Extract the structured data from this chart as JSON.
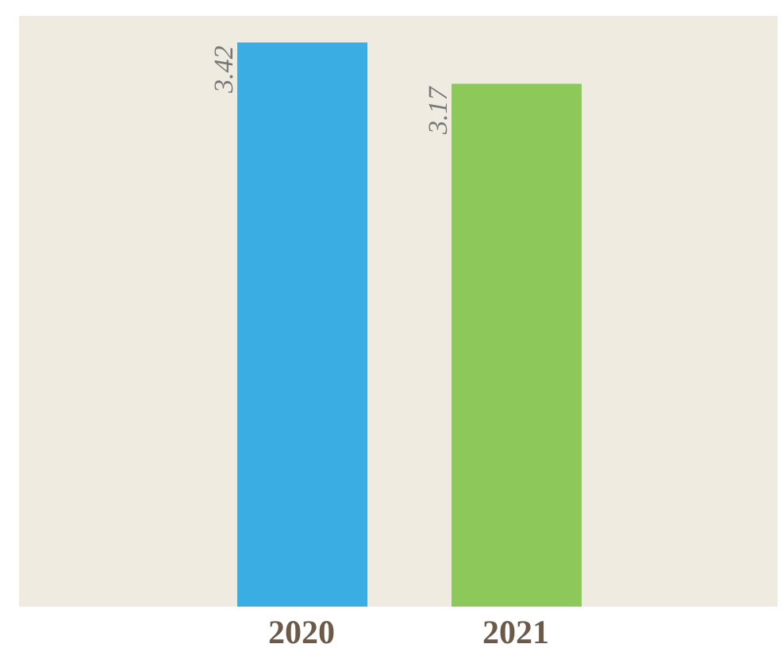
{
  "chart_data": {
    "type": "bar",
    "categories": [
      "2020",
      "2021"
    ],
    "values": [
      3.42,
      3.17
    ],
    "colors": [
      "#3aaee2",
      "#8cc85a"
    ],
    "data_labels": true,
    "grid": false,
    "legend": false
  }
}
